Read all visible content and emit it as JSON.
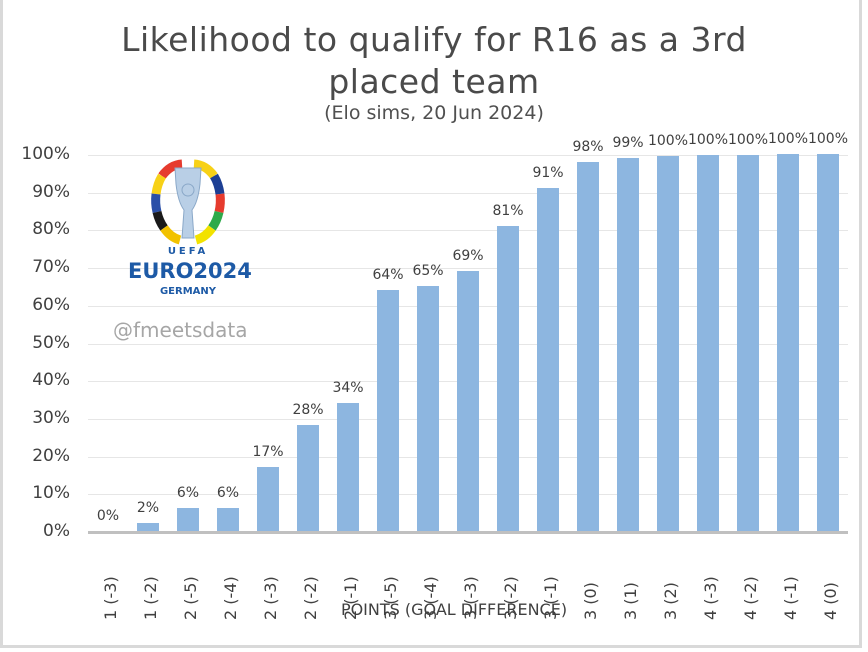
{
  "chart_data": {
    "type": "bar",
    "title": "Likelihood to qualify for R16 as a 3rd placed team",
    "title_line1": "Likelihood to qualify for R16 as a 3rd",
    "title_line2": "placed team",
    "subtitle": "(Elo sims, 20 Jun 2024)",
    "xlabel": "POINTS (GOAL DIFFERENCE)",
    "ylabel": "",
    "ylim": [
      0,
      100
    ],
    "yticks": [
      "0%",
      "10%",
      "20%",
      "30%",
      "40%",
      "50%",
      "60%",
      "70%",
      "80%",
      "90%",
      "100%"
    ],
    "grid": true,
    "legend": null,
    "categories": [
      "1 (-3)",
      "1 (-2)",
      "2 (-5)",
      "2 (-4)",
      "2 (-3)",
      "2 (-2)",
      "2 (-1)",
      "3 (-5)",
      "3 (-4)",
      "3 (-3)",
      "3 (-2)",
      "3 (-1)",
      "3 (0)",
      "3 (1)",
      "3 (2)",
      "4 (-3)",
      "4 (-2)",
      "4 (-1)",
      "4 (0)"
    ],
    "values": [
      0,
      2,
      6,
      6,
      17,
      28,
      34,
      64,
      65,
      69,
      81,
      91,
      98,
      99,
      99.5,
      99.8,
      99.8,
      100,
      100
    ],
    "data_labels": [
      "0%",
      "2%",
      "6%",
      "6%",
      "17%",
      "28%",
      "34%",
      "64%",
      "65%",
      "69%",
      "81%",
      "91%",
      "98%",
      "99%",
      "100%",
      "100%",
      "100%",
      "100%",
      "100%"
    ],
    "bar_color": "#8db6e0"
  },
  "branding": {
    "logo_top": "UEFA",
    "logo_main": "EURO2024",
    "logo_sub": "GERMANY",
    "watermark": "@fmeetsdata"
  }
}
